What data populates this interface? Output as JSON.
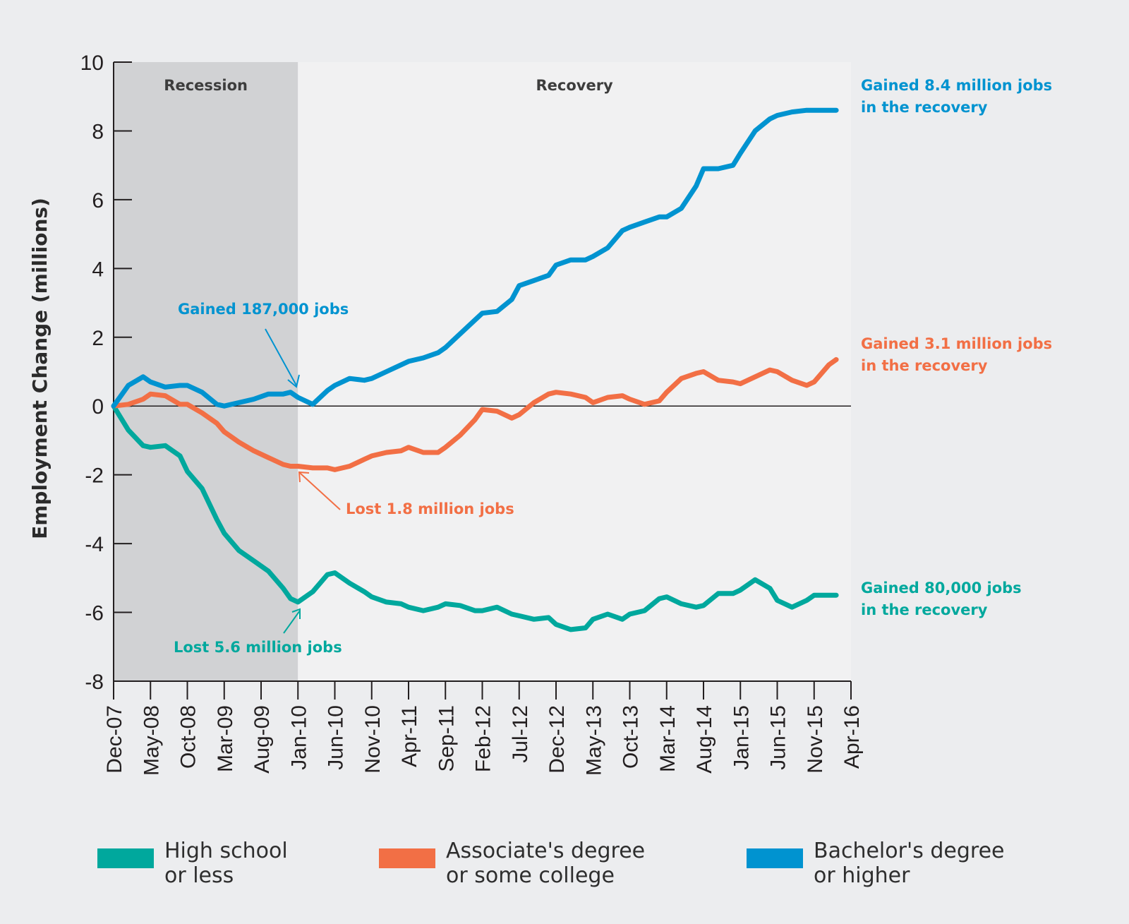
{
  "chart_data": {
    "type": "line",
    "title": "",
    "xlabel": "",
    "ylabel": "Employment Change (millions)",
    "ylim": [
      -8,
      10
    ],
    "yticks": [
      10,
      8,
      6,
      4,
      2,
      0,
      -2,
      -4,
      -6,
      -8
    ],
    "xtick_labels": [
      "Dec-07",
      "May-08",
      "Oct-08",
      "Mar-09",
      "Aug-09",
      "Jan-10",
      "Jun-10",
      "Nov-10",
      "Apr-11",
      "Sep-11",
      "Feb-12",
      "Jul-12",
      "Dec-12",
      "May-13",
      "Oct-13",
      "Mar-14",
      "Aug-14",
      "Jan-15",
      "Jun-15",
      "Nov-15",
      "Apr-16"
    ],
    "x_unit": "months since Dec-07",
    "xlim": [
      0,
      100
    ],
    "periods": [
      {
        "label": "Recession",
        "start": 0,
        "end": 25
      },
      {
        "label": "Recovery",
        "start": 25,
        "end": 100
      }
    ],
    "grid": false,
    "legend_position": "bottom",
    "x": [
      0,
      2,
      4,
      5,
      7,
      9,
      10,
      12,
      14,
      15,
      17,
      19,
      21,
      23,
      24,
      25,
      27,
      29,
      30,
      32,
      34,
      35,
      37,
      39,
      40,
      42,
      44,
      45,
      47,
      49,
      50,
      52,
      54,
      55,
      57,
      59,
      60,
      62,
      64,
      65,
      67,
      69,
      70,
      72,
      74,
      75,
      77,
      79,
      80,
      82,
      84,
      85,
      87,
      89,
      90,
      92,
      94,
      95,
      97,
      98
    ],
    "series": [
      {
        "name": "High school or less",
        "color": "#00a89d",
        "values": [
          0,
          -0.7,
          -1.15,
          -1.2,
          -1.15,
          -1.45,
          -1.9,
          -2.4,
          -3.3,
          -3.7,
          -4.2,
          -4.5,
          -4.8,
          -5.3,
          -5.6,
          -5.7,
          -5.4,
          -4.9,
          -4.85,
          -5.15,
          -5.4,
          -5.55,
          -5.7,
          -5.75,
          -5.85,
          -5.95,
          -5.85,
          -5.75,
          -5.8,
          -5.95,
          -5.95,
          -5.85,
          -6.05,
          -6.1,
          -6.2,
          -6.15,
          -6.35,
          -6.5,
          -6.45,
          -6.2,
          -6.05,
          -6.2,
          -6.05,
          -5.95,
          -5.6,
          -5.55,
          -5.75,
          -5.85,
          -5.8,
          -5.45,
          -5.45,
          -5.35,
          -5.05,
          -5.3,
          -5.65,
          -5.85,
          -5.65,
          -5.5,
          -5.5,
          -5.5
        ]
      },
      {
        "name": "Associate's degree or some college",
        "color": "#f26f45",
        "values": [
          0,
          0.05,
          0.2,
          0.35,
          0.3,
          0.05,
          0.05,
          -0.2,
          -0.5,
          -0.75,
          -1.05,
          -1.3,
          -1.5,
          -1.7,
          -1.75,
          -1.75,
          -1.8,
          -1.8,
          -1.85,
          -1.75,
          -1.55,
          -1.45,
          -1.35,
          -1.3,
          -1.2,
          -1.35,
          -1.35,
          -1.2,
          -0.85,
          -0.4,
          -0.1,
          -0.15,
          -0.35,
          -0.25,
          0.1,
          0.35,
          0.4,
          0.35,
          0.25,
          0.1,
          0.25,
          0.3,
          0.2,
          0.05,
          0.15,
          0.4,
          0.8,
          0.95,
          1.0,
          0.75,
          0.7,
          0.65,
          0.85,
          1.05,
          1.0,
          0.75,
          0.6,
          0.7,
          1.2,
          1.35
        ]
      },
      {
        "name": "Bachelor's degree or higher",
        "color": "#0093d0",
        "values": [
          0,
          0.6,
          0.85,
          0.7,
          0.55,
          0.6,
          0.6,
          0.4,
          0.05,
          0.0,
          0.1,
          0.2,
          0.35,
          0.35,
          0.4,
          0.25,
          0.05,
          0.45,
          0.6,
          0.8,
          0.75,
          0.8,
          1.0,
          1.2,
          1.3,
          1.4,
          1.55,
          1.7,
          2.1,
          2.5,
          2.7,
          2.75,
          3.1,
          3.5,
          3.65,
          3.8,
          4.1,
          4.25,
          4.25,
          4.35,
          4.6,
          5.1,
          5.2,
          5.35,
          5.5,
          5.5,
          5.75,
          6.4,
          6.9,
          6.9,
          7.0,
          7.35,
          8.0,
          8.35,
          8.45,
          8.55,
          8.6,
          8.6,
          8.6,
          8.6
        ]
      }
    ],
    "annotations": [
      {
        "text": "Gained 187,000 jobs",
        "series": "Bachelor's degree or higher",
        "color": "#0093d0"
      },
      {
        "text": "Lost 1.8 million jobs",
        "series": "Associate's degree or some college",
        "color": "#f26f45"
      },
      {
        "text": "Lost 5.6 million jobs",
        "series": "High school or less",
        "color": "#00a89d"
      },
      {
        "text_line1": "Gained 8.4 million jobs",
        "text_line2": "in the recovery",
        "color": "#0093d0"
      },
      {
        "text_line1": "Gained 3.1 million jobs",
        "text_line2": "in the recovery",
        "color": "#f26f45"
      },
      {
        "text_line1": "Gained 80,000 jobs",
        "text_line2": "in the recovery",
        "color": "#00a89d"
      }
    ]
  },
  "legend": [
    {
      "line1": "High school",
      "line2": "or less",
      "color": "#00a89d"
    },
    {
      "line1": "Associate's degree",
      "line2": "or some college",
      "color": "#f26f45"
    },
    {
      "line1": "Bachelor's degree",
      "line2": "or higher",
      "color": "#0093d0"
    }
  ]
}
